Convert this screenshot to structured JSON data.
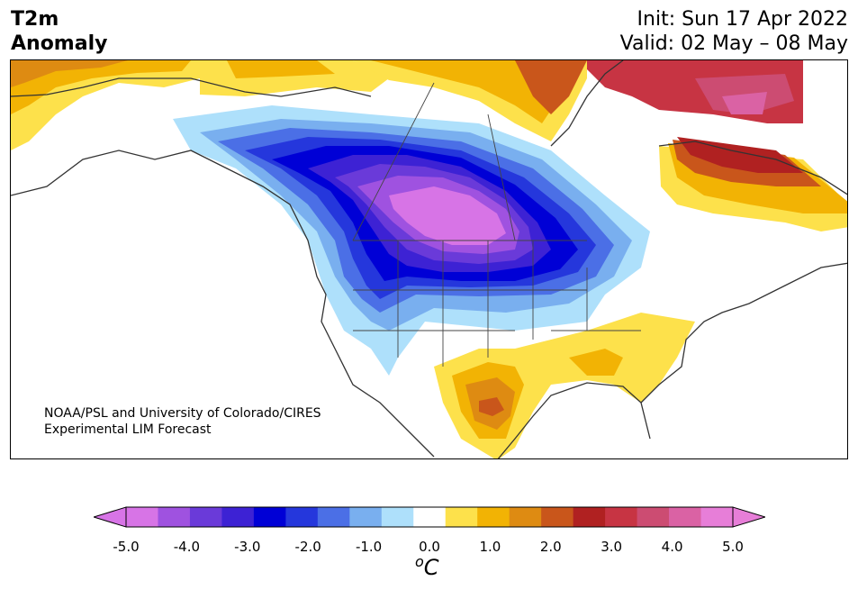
{
  "title": {
    "line1": "T2m",
    "line2": "Anomaly"
  },
  "init": "Init: Sun 17 Apr 2022",
  "valid": "Valid: 02 May – 08 May",
  "credit": {
    "line1": "NOAA/PSL and University of Colorado/CIRES",
    "line2": "Experimental LIM Forecast"
  },
  "colorbar": {
    "ticks": [
      "-5.0",
      "-4.0",
      "-3.0",
      "-2.0",
      "-1.0",
      "0.0",
      "1.0",
      "2.0",
      "3.0",
      "4.0",
      "5.0"
    ],
    "units_base": "C",
    "units_sup": "o",
    "levels": [
      -5.0,
      -4.5,
      -4.0,
      -3.5,
      -3.0,
      -2.5,
      -2.0,
      -1.5,
      -1.0,
      -0.5,
      0.5,
      1.0,
      1.5,
      2.0,
      2.5,
      3.0,
      3.5,
      4.0,
      4.5,
      5.0
    ],
    "colors": [
      "#d774e6",
      "#9f52e0",
      "#6a3ad9",
      "#3d22d4",
      "#0000d6",
      "#2537dc",
      "#4b6fe6",
      "#79afef",
      "#aee0fb",
      "#ffffff",
      "#fde14b",
      "#f2b304",
      "#de8b12",
      "#c9561b",
      "#b02121",
      "#c73443",
      "#cc4c72",
      "#da62a4",
      "#e77ed8"
    ],
    "under_color": "#d774e6",
    "over_color": "#e77ed8"
  }
}
